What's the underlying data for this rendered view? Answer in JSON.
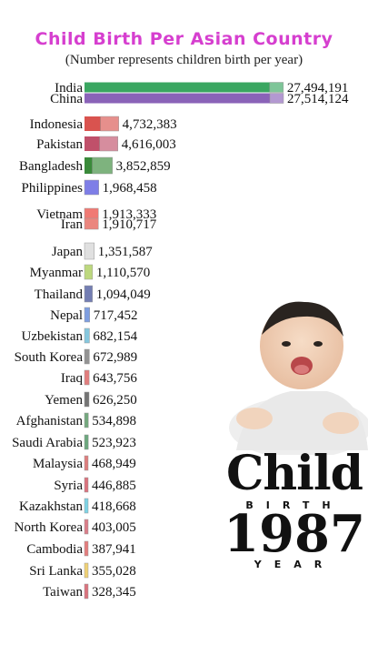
{
  "title": "Child Birth Per Asian Country",
  "subtitle": "(Number represents children birth per year)",
  "stamp": {
    "word": "Child",
    "birth": "BIRTH",
    "year": "1987",
    "year_word": "YEAR"
  },
  "chart_data": {
    "type": "bar",
    "orientation": "horizontal",
    "title": "Child Birth Per Asian Country",
    "subtitle": "(Number represents children birth per year)",
    "categories": [
      "India",
      "China",
      "Indonesia",
      "Pakistan",
      "Bangladesh",
      "Philippines",
      "Vietnam",
      "Iran",
      "Japan",
      "Myanmar",
      "Thailand",
      "Nepal",
      "Uzbekistan",
      "South Korea",
      "Iraq",
      "Yemen",
      "Afghanistan",
      "Saudi Arabia",
      "Malaysia",
      "Syria",
      "Kazakhstan",
      "North Korea",
      "Cambodia",
      "Sri Lanka",
      "Taiwan"
    ],
    "values": [
      27494191,
      27514124,
      4732383,
      4616003,
      3852859,
      1968458,
      1913333,
      1910717,
      1351587,
      1110570,
      1094049,
      717452,
      682154,
      672989,
      643756,
      626250,
      534898,
      523923,
      468949,
      446885,
      418668,
      403005,
      387941,
      355028,
      328345
    ],
    "value_labels": [
      "27,494,191",
      "27,514,124",
      "4,732,383",
      "4,616,003",
      "3,852,859",
      "1,968,458",
      "1,913,333",
      "1,910,717",
      "1,351,587",
      "1,110,570",
      "1,094,049",
      "717,452",
      "682,154",
      "672,989",
      "643,756",
      "626,250",
      "534,898",
      "523,923",
      "468,949",
      "446,885",
      "418,668",
      "403,005",
      "387,941",
      "355,028",
      "328,345"
    ],
    "colors": [
      "#3aa661",
      "#8a63b8",
      "#d9534f",
      "#c0506a",
      "#3a8a3a",
      "#3a3adb",
      "#e8342a",
      "#e0453a",
      "#cfcfcf",
      "#9ac43a",
      "#2a3a8a",
      "#3a6acf",
      "#46aacd",
      "#5a5a5a",
      "#d33a3a",
      "#2a2a2a",
      "#2a7a3a",
      "#1f7a3a",
      "#cc3a3a",
      "#c8283a",
      "#3abcd8",
      "#c83a4a",
      "#d63a3a",
      "#e8b82a",
      "#c8283a"
    ],
    "flags": [
      "india-flag",
      "china-flag",
      "indonesia-flag",
      "pakistan-flag",
      "bangladesh-flag",
      "philippines-flag",
      "vietnam-flag",
      "iran-flag",
      "japan-flag",
      "myanmar-flag",
      "thailand-flag",
      "nepal-flag",
      "uzbekistan-flag",
      "south-korea-flag",
      "iraq-flag",
      "yemen-flag",
      "afghanistan-flag",
      "saudi-arabia-flag",
      "malaysia-flag",
      "syria-flag",
      "kazakhstan-flag",
      "north-korea-flag",
      "cambodia-flag",
      "sri-lanka-flag",
      "taiwan-flag"
    ],
    "grid": false,
    "legend": "none"
  }
}
